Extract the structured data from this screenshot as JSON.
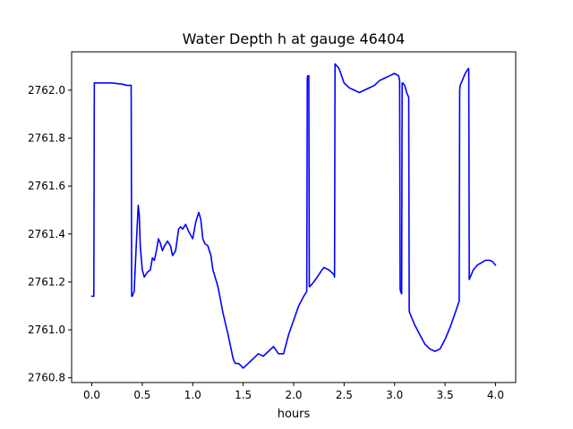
{
  "chart_data": {
    "type": "line",
    "title": "Water Depth h at gauge 46404",
    "xlabel": "hours",
    "ylabel": "",
    "xlim": [
      -0.2,
      4.2
    ],
    "ylim": [
      2760.78,
      2762.16
    ],
    "xticks": [
      0.0,
      0.5,
      1.0,
      1.5,
      2.0,
      2.5,
      3.0,
      3.5,
      4.0
    ],
    "xtick_labels": [
      "0.0",
      "0.5",
      "1.0",
      "1.5",
      "2.0",
      "2.5",
      "3.0",
      "3.5",
      "4.0"
    ],
    "yticks": [
      2760.8,
      2761.0,
      2761.2,
      2761.4,
      2761.6,
      2761.8,
      2762.0
    ],
    "ytick_labels": [
      "2760.8",
      "2761.0",
      "2761.2",
      "2761.4",
      "2761.6",
      "2761.8",
      "2762.0"
    ],
    "grid": false,
    "colors": {
      "line": "#0000ff",
      "axes": "#000000",
      "background": "#ffffff"
    },
    "series": [
      {
        "x": [
          0.0,
          0.02,
          0.025,
          0.03,
          0.1,
          0.2,
          0.3,
          0.35,
          0.39,
          0.395,
          0.4,
          0.42,
          0.44,
          0.46,
          0.47,
          0.48,
          0.5,
          0.52,
          0.55,
          0.58,
          0.6,
          0.62,
          0.64,
          0.66,
          0.68,
          0.7,
          0.72,
          0.75,
          0.78,
          0.8,
          0.83,
          0.86,
          0.88,
          0.9,
          0.93,
          0.96,
          1.0,
          1.03,
          1.06,
          1.08,
          1.1,
          1.12,
          1.15,
          1.18,
          1.2,
          1.25,
          1.3,
          1.35,
          1.4,
          1.42,
          1.45,
          1.48,
          1.5,
          1.55,
          1.6,
          1.65,
          1.7,
          1.75,
          1.8,
          1.85,
          1.9,
          1.95,
          2.0,
          2.05,
          2.1,
          2.13,
          2.135,
          2.14,
          2.145,
          2.15,
          2.155,
          2.16,
          2.2,
          2.25,
          2.28,
          2.3,
          2.35,
          2.4,
          2.405,
          2.41,
          2.45,
          2.5,
          2.55,
          2.6,
          2.65,
          2.7,
          2.75,
          2.8,
          2.85,
          2.9,
          2.95,
          3.0,
          3.04,
          3.05,
          3.055,
          3.06,
          3.07,
          3.075,
          3.08,
          3.1,
          3.12,
          3.14,
          3.145,
          3.15,
          3.2,
          3.25,
          3.3,
          3.35,
          3.4,
          3.45,
          3.5,
          3.55,
          3.6,
          3.64,
          3.645,
          3.65,
          3.7,
          3.73,
          3.735,
          3.74,
          3.78,
          3.82,
          3.86,
          3.9,
          3.94,
          3.97,
          4.0
        ],
        "y": [
          2761.14,
          2761.14,
          2762.03,
          2762.03,
          2762.03,
          2762.03,
          2762.025,
          2762.02,
          2762.02,
          2761.14,
          2761.14,
          2761.16,
          2761.35,
          2761.52,
          2761.48,
          2761.35,
          2761.25,
          2761.22,
          2761.24,
          2761.25,
          2761.3,
          2761.29,
          2761.33,
          2761.38,
          2761.36,
          2761.33,
          2761.35,
          2761.37,
          2761.35,
          2761.31,
          2761.33,
          2761.42,
          2761.43,
          2761.42,
          2761.44,
          2761.41,
          2761.38,
          2761.45,
          2761.49,
          2761.46,
          2761.38,
          2761.36,
          2761.35,
          2761.31,
          2761.25,
          2761.18,
          2761.07,
          2760.98,
          2760.88,
          2760.86,
          2760.86,
          2760.85,
          2760.84,
          2760.86,
          2760.88,
          2760.9,
          2760.89,
          2760.91,
          2760.93,
          2760.9,
          2760.9,
          2760.98,
          2761.04,
          2761.1,
          2761.14,
          2761.16,
          2762.05,
          2762.06,
          2762.06,
          2762.06,
          2761.18,
          2761.18,
          2761.2,
          2761.23,
          2761.25,
          2761.26,
          2761.25,
          2761.23,
          2761.22,
          2762.11,
          2762.09,
          2762.03,
          2762.01,
          2762.0,
          2761.99,
          2762.0,
          2762.01,
          2762.02,
          2762.04,
          2762.05,
          2762.06,
          2762.07,
          2762.06,
          2762.04,
          2761.17,
          2761.16,
          2761.15,
          2762.03,
          2762.03,
          2762.02,
          2761.99,
          2761.97,
          2761.08,
          2761.07,
          2761.02,
          2760.98,
          2760.94,
          2760.92,
          2760.91,
          2760.92,
          2760.96,
          2761.01,
          2761.07,
          2761.12,
          2762.0,
          2762.02,
          2762.07,
          2762.09,
          2762.09,
          2761.21,
          2761.25,
          2761.27,
          2761.28,
          2761.29,
          2761.29,
          2761.285,
          2761.27
        ]
      }
    ]
  }
}
